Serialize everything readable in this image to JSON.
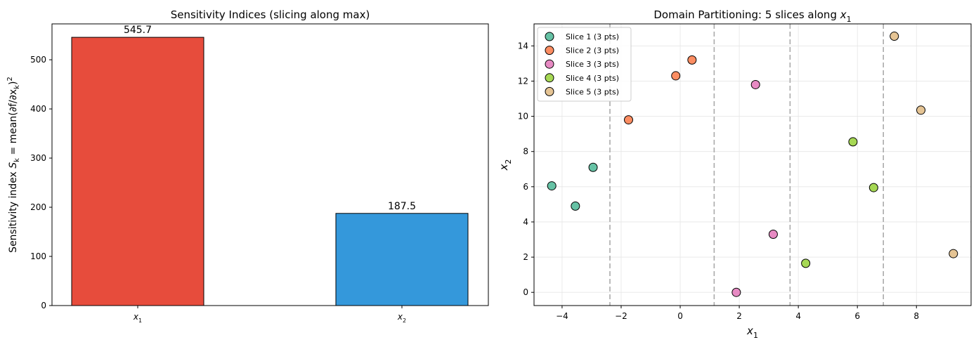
{
  "chart_data": [
    {
      "type": "bar",
      "title": "Sensitivity Indices (slicing along max)",
      "ylabel_text": "Sensitivity index",
      "ylabel_math": {
        "base": "S",
        "sub": "k",
        "rest": " = mean(∂f/∂x",
        "sub2": "k",
        "close": ")",
        "sup": "2"
      },
      "categories": [
        {
          "base": "x",
          "sub": "1"
        },
        {
          "base": "x",
          "sub": "2"
        }
      ],
      "values": [
        545.7,
        187.5
      ],
      "value_labels": [
        "545.7",
        "187.5"
      ],
      "colors": [
        "#e74c3c",
        "#3498db"
      ],
      "ylim": [
        0,
        573
      ],
      "yticks": [
        0,
        100,
        200,
        300,
        400,
        500
      ],
      "ytick_labels": [
        "0",
        "100",
        "200",
        "300",
        "400",
        "500"
      ],
      "grid": false
    },
    {
      "type": "scatter",
      "title_prefix": "Domain Partitioning: 5 slices along ",
      "title_var": {
        "base": "x",
        "sub": "1"
      },
      "xlabel": {
        "base": "x",
        "sub": "1"
      },
      "ylabel": {
        "base": "x",
        "sub": "2"
      },
      "xlim": [
        -4.95,
        9.85
      ],
      "ylim": [
        -0.75,
        15.25
      ],
      "xticks": [
        -4,
        -2,
        0,
        2,
        4,
        6,
        8
      ],
      "xtick_labels": [
        "−4",
        "−2",
        "0",
        "2",
        "4",
        "6",
        "8"
      ],
      "yticks": [
        0,
        2,
        4,
        6,
        8,
        10,
        12,
        14
      ],
      "ytick_labels": [
        "0",
        "2",
        "4",
        "6",
        "8",
        "10",
        "12",
        "14"
      ],
      "grid": true,
      "legend_position": "top-left",
      "slice_boundaries": [
        -2.38,
        1.15,
        3.72,
        6.88
      ],
      "series": [
        {
          "name": "Slice 1 (3 pts)",
          "color": "#66c2a5",
          "points": [
            [
              -4.35,
              6.05
            ],
            [
              -3.55,
              4.9
            ],
            [
              -2.95,
              7.1
            ]
          ]
        },
        {
          "name": "Slice 2 (3 pts)",
          "color": "#fc8d62",
          "points": [
            [
              -1.75,
              9.8
            ],
            [
              -0.15,
              12.3
            ],
            [
              0.4,
              13.2
            ]
          ]
        },
        {
          "name": "Slice 3 (3 pts)",
          "color": "#e78ac3",
          "points": [
            [
              1.9,
              0.0
            ],
            [
              2.55,
              11.8
            ],
            [
              3.15,
              3.3
            ]
          ]
        },
        {
          "name": "Slice 4 (3 pts)",
          "color": "#a6d854",
          "points": [
            [
              4.25,
              1.65
            ],
            [
              5.85,
              8.55
            ],
            [
              6.55,
              5.95
            ]
          ]
        },
        {
          "name": "Slice 5 (3 pts)",
          "color": "#e5c494",
          "points": [
            [
              7.25,
              14.55
            ],
            [
              8.15,
              10.35
            ],
            [
              9.25,
              2.2
            ]
          ]
        }
      ]
    }
  ]
}
